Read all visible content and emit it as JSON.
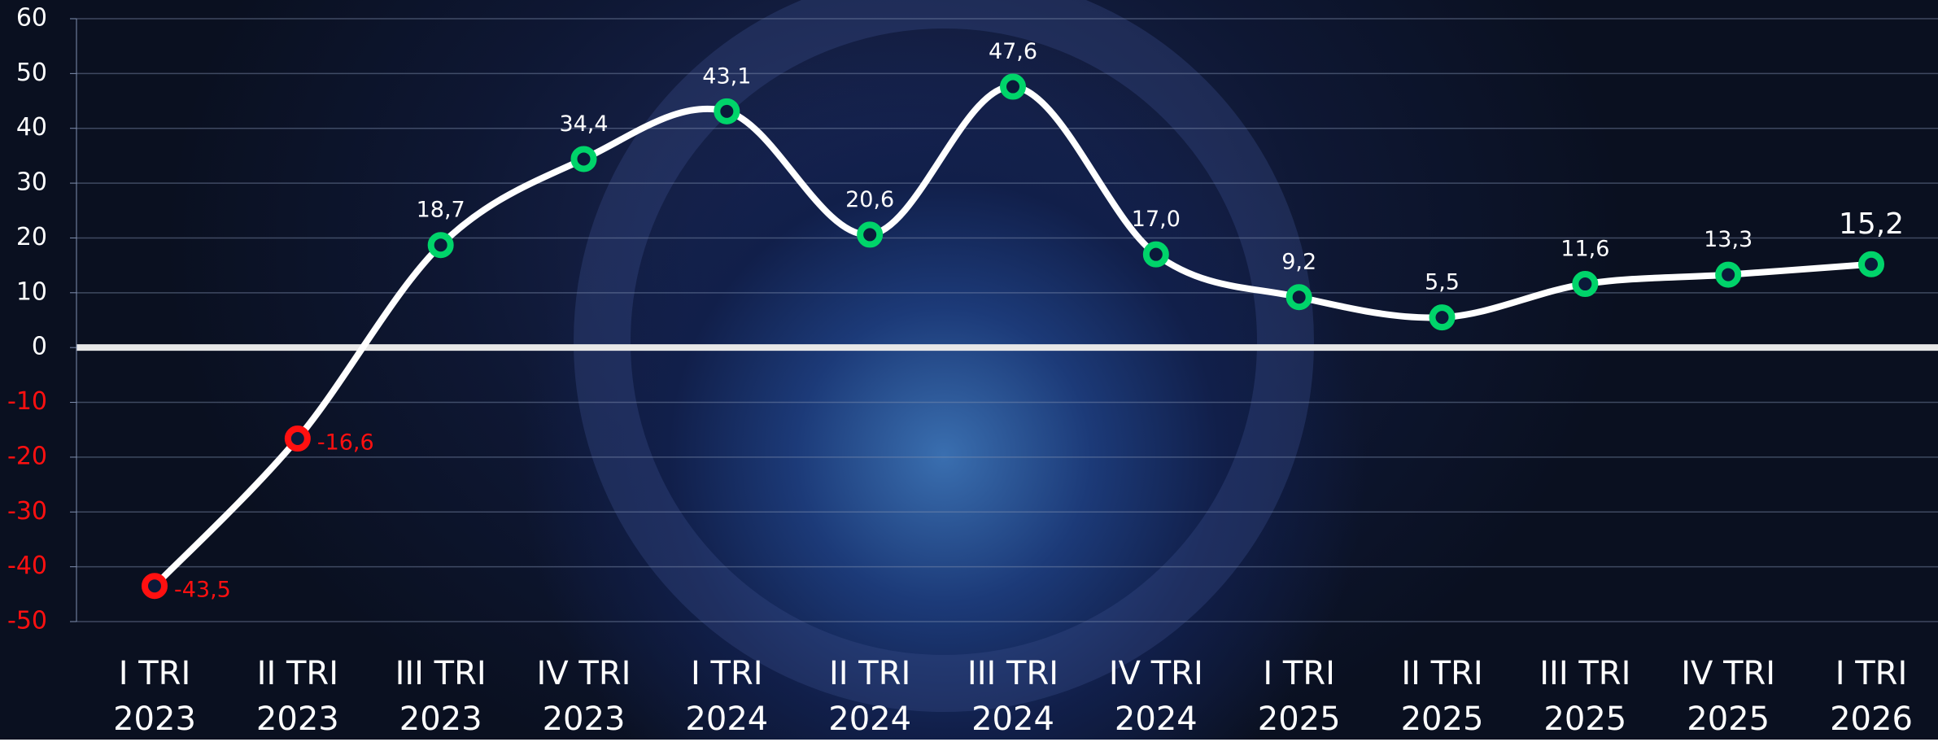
{
  "chart_data": {
    "type": "line",
    "categories": [
      "I TRI\n2023",
      "II TRI\n2023",
      "III TRI\n2023",
      "IV TRI\n2023",
      "I TRI\n2024",
      "II TRI\n2024",
      "III TRI\n2024",
      "IV TRI\n2024",
      "I TRI\n2025",
      "II TRI\n2025",
      "III TRI\n2025",
      "IV TRI\n2025",
      "I TRI\n2026"
    ],
    "values": [
      -43.5,
      -16.6,
      18.7,
      34.4,
      43.1,
      20.6,
      47.6,
      17.0,
      9.2,
      5.5,
      11.6,
      13.3,
      15.2
    ],
    "value_labels": [
      "-43,5",
      "-16,6",
      "18,7",
      "34,4",
      "43,1",
      "20,6",
      "47,6",
      "17,0",
      "9,2",
      "5,5",
      "11,6",
      "13,3",
      "15,2"
    ],
    "color": "#ffffff",
    "marker_color": "#00d46a",
    "negative_color": "#ff1010",
    "ylim": [
      -50,
      60
    ],
    "yticks": [
      -50,
      -40,
      -30,
      -20,
      -10,
      0,
      10,
      20,
      30,
      40,
      50,
      60
    ],
    "grid": true
  }
}
